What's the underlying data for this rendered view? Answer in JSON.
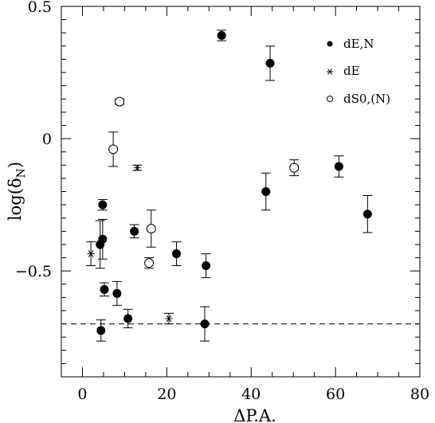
{
  "chart_data": {
    "type": "scatter",
    "xlabel": "ΔP.A.",
    "ylabel_main": "log(δ",
    "ylabel_sub": "N",
    "ylabel_close": ")",
    "xlim": [
      -5,
      80
    ],
    "ylim": [
      -0.9,
      0.5
    ],
    "xticks": [
      0,
      20,
      40,
      60,
      80
    ],
    "yticks": [
      -0.5,
      0,
      0.5
    ],
    "xtick_labels": [
      "0",
      "20",
      "40",
      "60",
      "80"
    ],
    "ytick_labels": [
      "−0.5",
      "0",
      "0.5"
    ],
    "reference_line": {
      "y": -0.7,
      "style": "dashed"
    },
    "grid": false,
    "legend_position": "top-right",
    "series": [
      {
        "name": "dE,N",
        "marker": "filled-circle",
        "points": [
          {
            "x": 33.0,
            "y": 0.39,
            "err": 0.02
          },
          {
            "x": 44.5,
            "y": 0.285,
            "err": 0.065
          },
          {
            "x": 4.8,
            "y": -0.25,
            "err": 0.02
          },
          {
            "x": 4.8,
            "y": -0.38,
            "err": 0.075
          },
          {
            "x": 4.2,
            "y": -0.4,
            "err": 0.09
          },
          {
            "x": 5.2,
            "y": -0.57,
            "err": 0.025
          },
          {
            "x": 8.2,
            "y": -0.585,
            "err": 0.045
          },
          {
            "x": 12.3,
            "y": -0.35,
            "err": 0.025
          },
          {
            "x": 22.3,
            "y": -0.435,
            "err": 0.045
          },
          {
            "x": 29.3,
            "y": -0.48,
            "err": 0.045
          },
          {
            "x": 43.5,
            "y": -0.2,
            "err": 0.07
          },
          {
            "x": 60.8,
            "y": -0.105,
            "err": 0.04
          },
          {
            "x": 67.6,
            "y": -0.285,
            "err": 0.07
          },
          {
            "x": 4.4,
            "y": -0.725,
            "err": 0.04
          },
          {
            "x": 10.8,
            "y": -0.68,
            "err": 0.035
          },
          {
            "x": 29.0,
            "y": -0.7,
            "err": 0.065
          }
        ]
      },
      {
        "name": "dE",
        "marker": "asterisk",
        "points": [
          {
            "x": 2.0,
            "y": -0.435,
            "err": 0.045
          },
          {
            "x": 13.0,
            "y": -0.11,
            "err": 0.01
          },
          {
            "x": 20.5,
            "y": -0.68,
            "err": 0.02
          }
        ]
      },
      {
        "name": "dS0,(N)",
        "marker": "open-circle",
        "points": [
          {
            "x": 8.8,
            "y": 0.14,
            "err": 0.01
          },
          {
            "x": 7.3,
            "y": -0.04,
            "err": 0.065
          },
          {
            "x": 16.3,
            "y": -0.34,
            "err": 0.07
          },
          {
            "x": 15.8,
            "y": -0.47,
            "err": 0.02
          },
          {
            "x": 50.2,
            "y": -0.11,
            "err": 0.03
          }
        ]
      }
    ]
  }
}
